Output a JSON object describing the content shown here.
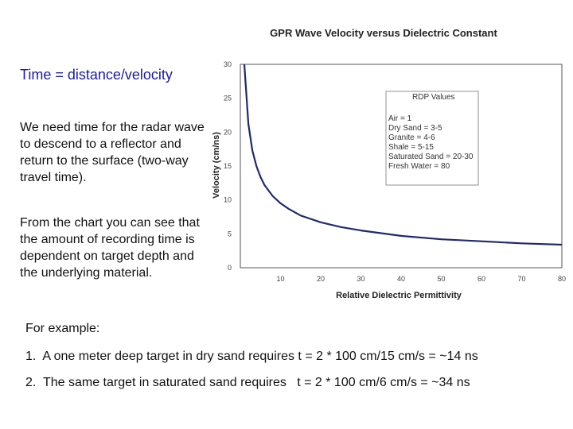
{
  "left_text": {
    "heading": "Time = distance/velocity",
    "paragraph1": "We need time for the radar wave to descend to a reflector and return to the surface (two-way travel time).",
    "paragraph2": "From the chart you can see that the amount of recording time is dependent on target depth and the underlying material."
  },
  "examples": {
    "label": "For example:",
    "items": [
      "1.  A one meter deep target in dry sand requires t = 2 * 100 cm/15 cm/s = ~14 ns",
      "2.  The same target in saturated sand requires   t = 2 * 100 cm/6 cm/s = ~34 ns"
    ]
  },
  "chart_data": {
    "type": "line",
    "title": "GPR Wave Velocity versus Dielectric Constant",
    "xlabel": "Relative Dielectric Permittivity",
    "ylabel": "Velocity (cm/ns)",
    "xlim": [
      0,
      80
    ],
    "ylim": [
      0,
      30
    ],
    "x_ticks": [
      10,
      20,
      30,
      40,
      50,
      60,
      70,
      80
    ],
    "y_ticks": [
      0,
      5,
      10,
      15,
      20,
      25,
      30
    ],
    "series": [
      {
        "name": "Velocity",
        "color": "#1f2a6e",
        "x": [
          1,
          2,
          3,
          4,
          5,
          6,
          8,
          10,
          12,
          15,
          20,
          25,
          30,
          40,
          50,
          60,
          70,
          80
        ],
        "y": [
          30,
          21.2,
          17.3,
          15,
          13.4,
          12.2,
          10.6,
          9.5,
          8.7,
          7.7,
          6.7,
          6,
          5.5,
          4.7,
          4.2,
          3.9,
          3.6,
          3.4
        ]
      }
    ],
    "legend": {
      "title": "RDP Values",
      "entries": [
        "Air = 1",
        "Dry Sand = 3-5",
        "Granite = 4-6",
        "Shale = 5-15",
        "Saturated Sand = 20-30",
        "Fresh Water = 80"
      ]
    }
  }
}
